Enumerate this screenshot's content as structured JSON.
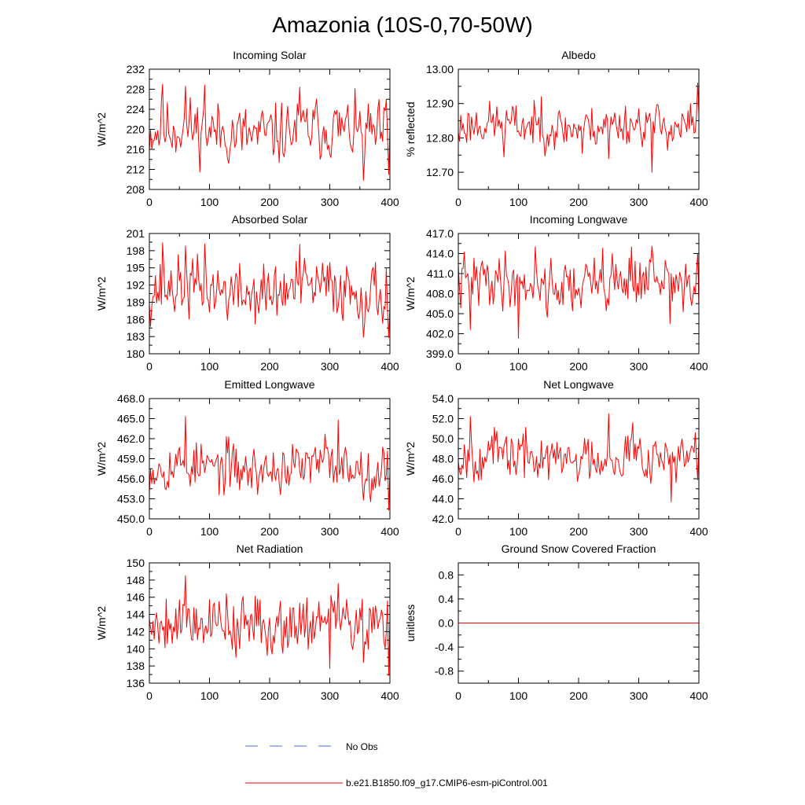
{
  "title": "Amazonia (10S-0,70-50W)",
  "series_color": "#ff0000",
  "no_obs_color": "#4b6cc4",
  "legend": {
    "no_obs_label": "No Obs",
    "model_label": "b.e21.B1850.f09_g17.CMIP6-esm-piControl.001"
  },
  "chart_data": [
    {
      "type": "line",
      "title": "Incoming Solar",
      "ylabel": "W/m^2",
      "xlim": [
        0,
        400
      ],
      "ylim": [
        208,
        232
      ],
      "xticks": [
        "0",
        "100",
        "200",
        "300",
        "400"
      ],
      "yticks": [
        "208",
        "212",
        "216",
        "220",
        "224",
        "228",
        "232"
      ],
      "series": [
        {
          "name": "b.e21.B1850.f09_g17.CMIP6-esm-piControl.001",
          "mean": 219.5,
          "amplitude": 3.0,
          "min": 209.8,
          "max": 229.0,
          "seed": 11,
          "spikes": [
            [
              22,
              229.0
            ],
            [
              60,
              228.6
            ],
            [
              92,
              228.8
            ],
            [
              250,
              228.4
            ],
            [
              356,
              209.8
            ],
            [
              394,
              226.0
            ],
            [
              398,
              211.0
            ]
          ]
        }
      ]
    },
    {
      "type": "line",
      "title": "Albedo",
      "ylabel": "% reflected",
      "xlim": [
        0,
        400
      ],
      "ylim": [
        12.65,
        13.0
      ],
      "xticks": [
        "0",
        "100",
        "200",
        "300",
        "400"
      ],
      "yticks": [
        "12.70",
        "12.80",
        "12.90",
        "13.00"
      ],
      "series": [
        {
          "name": "b.e21.B1850.f09_g17.CMIP6-esm-piControl.001",
          "mean": 12.835,
          "amplitude": 0.03,
          "min": 12.7,
          "max": 12.96,
          "seed": 23,
          "spikes": [
            [
              2,
              12.79
            ],
            [
              76,
              12.745
            ],
            [
              138,
              12.92
            ],
            [
              206,
              12.755
            ],
            [
              250,
              12.74
            ],
            [
              322,
              12.7
            ],
            [
              386,
              12.9
            ],
            [
              398,
              12.96
            ]
          ]
        }
      ]
    },
    {
      "type": "line",
      "title": "Absorbed Solar",
      "ylabel": "W/m^2",
      "xlim": [
        0,
        400
      ],
      "ylim": [
        180,
        201
      ],
      "xticks": [
        "0",
        "100",
        "200",
        "300",
        "400"
      ],
      "yticks": [
        "180",
        "183",
        "186",
        "189",
        "192",
        "195",
        "198",
        "201"
      ],
      "series": [
        {
          "name": "b.e21.B1850.f09_g17.CMIP6-esm-piControl.001",
          "mean": 191.0,
          "amplitude": 2.6,
          "min": 182.8,
          "max": 199.4,
          "seed": 37,
          "spikes": [
            [
              22,
              199.4
            ],
            [
              60,
              198.8
            ],
            [
              92,
              199.2
            ],
            [
              250,
              199.1
            ],
            [
              356,
              182.9
            ],
            [
              398,
              182.8
            ]
          ]
        }
      ]
    },
    {
      "type": "line",
      "title": "Incoming Longwave",
      "ylabel": "W/m^2",
      "xlim": [
        0,
        400
      ],
      "ylim": [
        399,
        417
      ],
      "xticks": [
        "0",
        "100",
        "200",
        "300",
        "400"
      ],
      "yticks": [
        "399.0",
        "402.0",
        "405.0",
        "408.0",
        "411.0",
        "414.0",
        "417.0"
      ],
      "series": [
        {
          "name": "b.e21.B1850.f09_g17.CMIP6-esm-piControl.001",
          "mean": 409.6,
          "amplitude": 2.0,
          "min": 401.3,
          "max": 415.2,
          "seed": 41,
          "spikes": [
            [
              20,
              402.6
            ],
            [
              100,
              401.3
            ],
            [
              128,
              415.0
            ],
            [
              240,
              414.8
            ],
            [
              288,
              415.0
            ],
            [
              322,
              415.1
            ],
            [
              352,
              403.5
            ],
            [
              398,
              414.0
            ]
          ]
        }
      ]
    },
    {
      "type": "line",
      "title": "Emitted Longwave",
      "ylabel": "W/m^2",
      "xlim": [
        0,
        400
      ],
      "ylim": [
        450,
        468
      ],
      "xticks": [
        "0",
        "100",
        "200",
        "300",
        "400"
      ],
      "yticks": [
        "450.0",
        "453.0",
        "456.0",
        "459.0",
        "462.0",
        "465.0",
        "468.0"
      ],
      "series": [
        {
          "name": "b.e21.B1850.f09_g17.CMIP6-esm-piControl.001",
          "mean": 457.6,
          "amplitude": 1.8,
          "min": 451.3,
          "max": 465.3,
          "seed": 53,
          "spikes": [
            [
              60,
              465.3
            ],
            [
              128,
              462.3
            ],
            [
              292,
              462.7
            ],
            [
              314,
              464.8
            ],
            [
              356,
              452.8
            ],
            [
              398,
              451.3
            ]
          ]
        }
      ]
    },
    {
      "type": "line",
      "title": "Net Longwave",
      "ylabel": "W/m^2",
      "xlim": [
        0,
        400
      ],
      "ylim": [
        42,
        54
      ],
      "xticks": [
        "0",
        "100",
        "200",
        "300",
        "400"
      ],
      "yticks": [
        "42.0",
        "44.0",
        "46.0",
        "48.0",
        "50.0",
        "52.0",
        "54.0"
      ],
      "series": [
        {
          "name": "b.e21.B1850.f09_g17.CMIP6-esm-piControl.001",
          "mean": 48.2,
          "amplitude": 1.2,
          "min": 43.7,
          "max": 52.5,
          "seed": 67,
          "spikes": [
            [
              20,
              52.2
            ],
            [
              250,
              52.5
            ],
            [
              290,
              51.6
            ],
            [
              354,
              43.7
            ],
            [
              394,
              50.6
            ],
            [
              398,
              45.9
            ]
          ]
        }
      ]
    },
    {
      "type": "line",
      "title": "Net Radiation",
      "ylabel": "W/m^2",
      "xlim": [
        0,
        400
      ],
      "ylim": [
        136,
        150
      ],
      "xticks": [
        "0",
        "100",
        "200",
        "300",
        "400"
      ],
      "yticks": [
        "136",
        "138",
        "140",
        "142",
        "144",
        "146",
        "148",
        "150"
      ],
      "series": [
        {
          "name": "b.e21.B1850.f09_g17.CMIP6-esm-piControl.001",
          "mean": 143.0,
          "amplitude": 1.7,
          "min": 136.9,
          "max": 148.5,
          "seed": 79,
          "spikes": [
            [
              60,
              148.5
            ],
            [
              128,
              146.4
            ],
            [
              300,
              137.7
            ],
            [
              314,
              147.6
            ],
            [
              356,
              138.4
            ],
            [
              398,
              136.9
            ]
          ]
        }
      ]
    },
    {
      "type": "line",
      "title": "Ground Snow Covered Fraction",
      "ylabel": "unitless",
      "xlim": [
        0,
        400
      ],
      "ylim": [
        -1.0,
        1.0
      ],
      "xticks": [
        "0",
        "100",
        "200",
        "300",
        "400"
      ],
      "yticks": [
        "-0.8",
        "-0.4",
        "0.0",
        "0.4",
        "0.8"
      ],
      "ytick_values": [
        -0.8,
        -0.4,
        0.0,
        0.4,
        0.8
      ],
      "series": [
        {
          "name": "b.e21.B1850.f09_g17.CMIP6-esm-piControl.001",
          "constant": 0.0
        }
      ]
    }
  ]
}
